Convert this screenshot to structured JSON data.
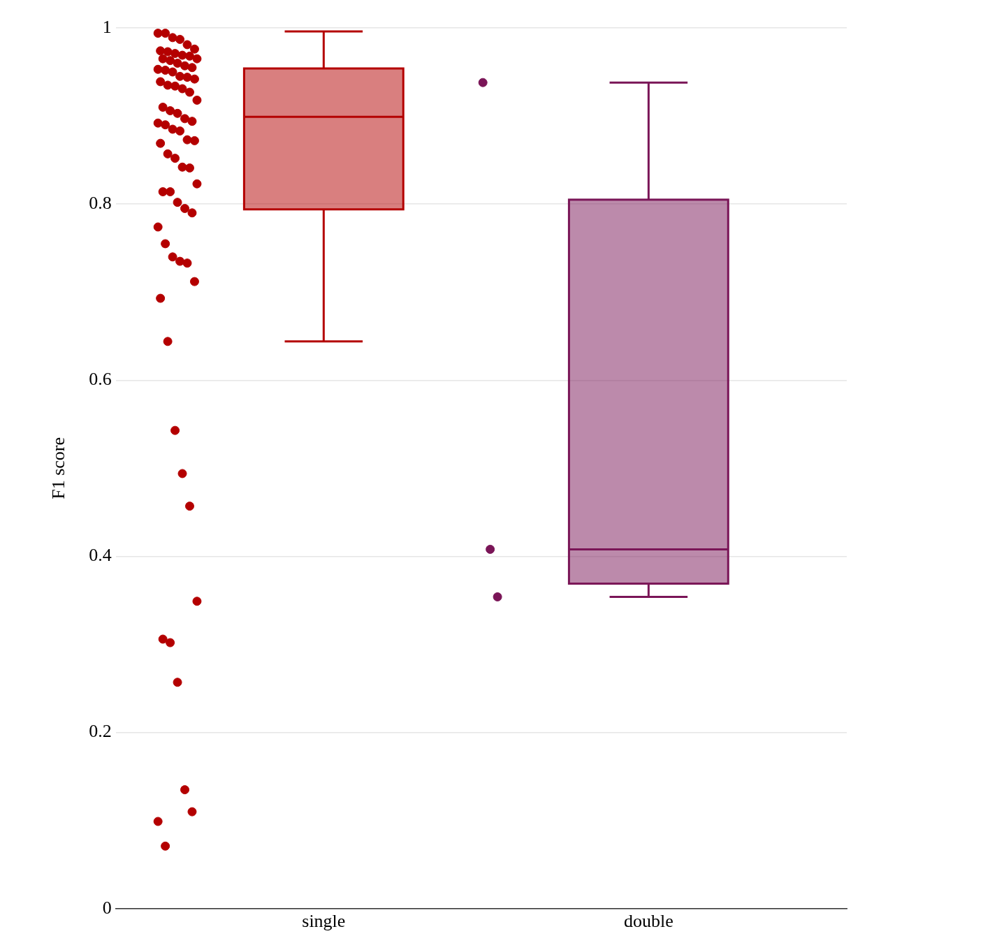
{
  "chart_data": {
    "type": "box",
    "y_label": "F1 score",
    "categories": [
      "single",
      "double"
    ],
    "ylim": [
      0,
      1
    ],
    "yticks": [
      0,
      0.2,
      0.4,
      0.6,
      0.8,
      1
    ],
    "grid": true,
    "boxes": [
      {
        "color": "#b40000",
        "min": 0.644,
        "q1": 0.794,
        "median": 0.899,
        "q3": 0.954,
        "max": 0.996,
        "points": [
          0.994,
          0.994,
          0.989,
          0.987,
          0.981,
          0.976,
          0.974,
          0.973,
          0.971,
          0.969,
          0.968,
          0.965,
          0.965,
          0.963,
          0.96,
          0.957,
          0.955,
          0.953,
          0.952,
          0.95,
          0.945,
          0.944,
          0.942,
          0.939,
          0.935,
          0.934,
          0.931,
          0.927,
          0.918,
          0.91,
          0.906,
          0.903,
          0.897,
          0.894,
          0.892,
          0.89,
          0.885,
          0.883,
          0.873,
          0.872,
          0.869,
          0.857,
          0.852,
          0.842,
          0.841,
          0.823,
          0.814,
          0.814,
          0.802,
          0.795,
          0.79,
          0.774,
          0.755,
          0.74,
          0.735,
          0.733,
          0.712,
          0.693,
          0.644,
          0.543,
          0.494,
          0.457,
          0.349,
          0.306,
          0.302,
          0.257,
          0.135,
          0.11,
          0.099,
          0.071
        ]
      },
      {
        "color": "#7a1557",
        "min": 0.354,
        "q1": 0.369,
        "median": 0.408,
        "q3": 0.805,
        "max": 0.938,
        "points": [
          0.938,
          0.408,
          0.354
        ]
      }
    ]
  }
}
